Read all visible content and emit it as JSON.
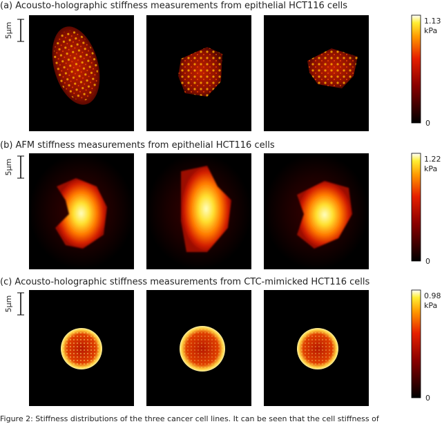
{
  "panels": [
    {
      "title": "(a) Acousto-holographic stiffness measurements from epithelial HCT116 cells",
      "scale": "5μm",
      "colorbar": {
        "max": 1.13,
        "unit": "kPa",
        "min": 0
      }
    },
    {
      "title": "(b) AFM stiffness measurements from epithelial HCT116 cells",
      "scale": "5μm",
      "colorbar": {
        "max": 1.22,
        "unit": "kPa",
        "min": 0
      }
    },
    {
      "title": "(c) Acousto-holographic stiffness measurements from CTC-mimicked HCT116 cells",
      "scale": "5μm",
      "colorbar": {
        "max": 0.98,
        "unit": "kPa",
        "min": 0
      }
    }
  ],
  "caption": "Figure 2: Stiffness distributions of the three cancer cell lines. It can be seen that the cell stiffness of"
}
